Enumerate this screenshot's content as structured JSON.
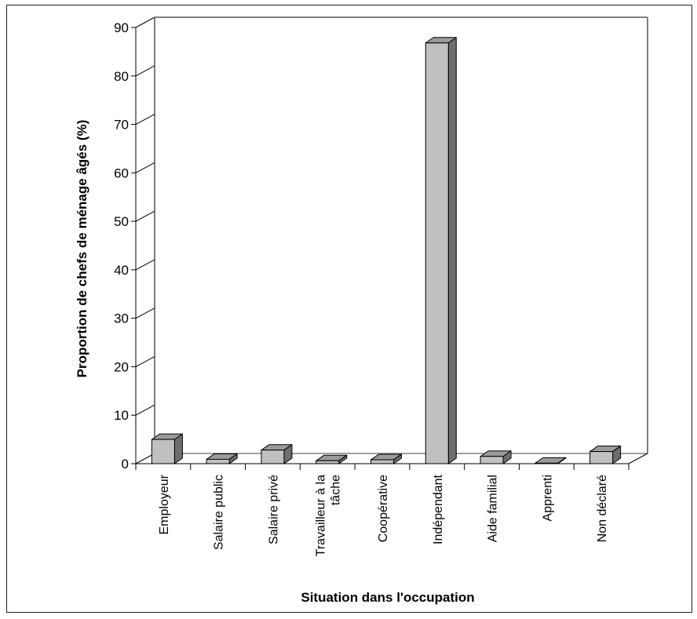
{
  "chart_data": {
    "type": "bar",
    "style": "3d",
    "title": "",
    "xlabel": "Situation dans l'occupation",
    "ylabel": "Proportion de chefs de ménage âgés  (%)",
    "ylim": [
      0,
      90
    ],
    "yticks": [
      "0",
      "10",
      "20",
      "30",
      "40",
      "50",
      "60",
      "70",
      "80",
      "90"
    ],
    "grid": false,
    "legend": "none",
    "categories": [
      "Employeur",
      "Salaire public",
      "Salaire privé",
      "Travailleur à la tâche",
      "Coopérative",
      "Indépendant",
      "Aide familial",
      "Apprenti",
      "Non déclaré"
    ],
    "category_label_lines": [
      [
        "Employeur"
      ],
      [
        "Salaire public"
      ],
      [
        "Salaire privé"
      ],
      [
        "Travailleur à la",
        "tâche"
      ],
      [
        "Coopérative"
      ],
      [
        "Indépendant"
      ],
      [
        "Aide familial"
      ],
      [
        "Apprenti"
      ],
      [
        "Non déclaré"
      ]
    ],
    "series": [
      {
        "values": [
          5.0,
          0.9,
          2.8,
          0.6,
          0.8,
          86.8,
          1.5,
          0.1,
          2.5
        ]
      }
    ],
    "colors": {
      "bar_front": "#c0c0c0",
      "bar_top": "#9a9a9a",
      "bar_side": "#6e6e6e",
      "wall": "#808080",
      "axis": "#000000"
    }
  }
}
